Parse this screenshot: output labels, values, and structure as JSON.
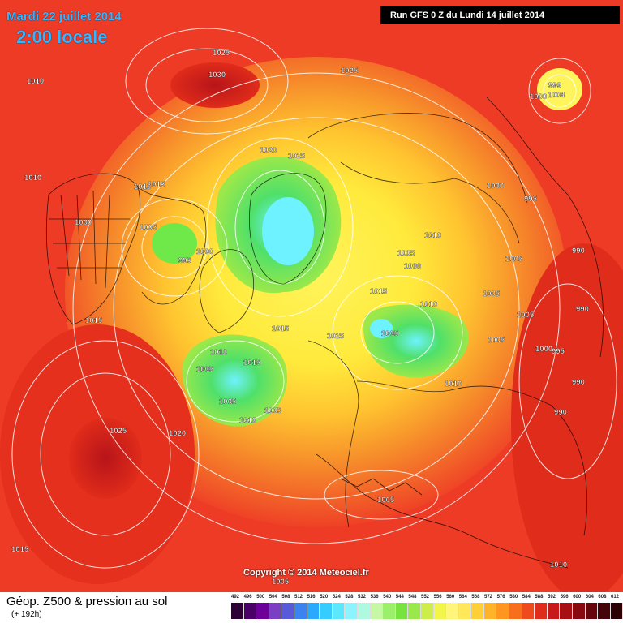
{
  "header": {
    "date": "Mardi 22 juillet 2014",
    "time": "2:00 locale",
    "run": "Run GFS 0 Z du Lundi 14 juillet 2014"
  },
  "map": {
    "isobar_labels": [
      {
        "text": "1010"
      },
      {
        "text": "1025"
      },
      {
        "text": "1030"
      },
      {
        "text": "1025"
      },
      {
        "text": "999"
      },
      {
        "text": "1000"
      },
      {
        "text": "1004"
      },
      {
        "text": "1010"
      },
      {
        "text": "1020"
      },
      {
        "text": "1025"
      },
      {
        "text": "1015"
      },
      {
        "text": "1010"
      },
      {
        "text": "1000"
      },
      {
        "text": "1005"
      },
      {
        "text": "995"
      },
      {
        "text": "1000"
      },
      {
        "text": "1010"
      },
      {
        "text": "1005"
      },
      {
        "text": "1000"
      },
      {
        "text": "1000"
      },
      {
        "text": "995"
      },
      {
        "text": "1005"
      },
      {
        "text": "990"
      },
      {
        "text": "1015"
      },
      {
        "text": "1005"
      },
      {
        "text": "990"
      },
      {
        "text": "1015"
      },
      {
        "text": "1015"
      },
      {
        "text": "1025"
      },
      {
        "text": "1010"
      },
      {
        "text": "1005"
      },
      {
        "text": "1005"
      },
      {
        "text": "1010"
      },
      {
        "text": "1015"
      },
      {
        "text": "1005"
      },
      {
        "text": "1000"
      },
      {
        "text": "995"
      },
      {
        "text": "990"
      },
      {
        "text": "1005"
      },
      {
        "text": "1010"
      },
      {
        "text": "1005"
      },
      {
        "text": "1010"
      },
      {
        "text": "990"
      },
      {
        "text": "1025"
      },
      {
        "text": "1020"
      },
      {
        "text": "1005"
      },
      {
        "text": "1015"
      },
      {
        "text": "1005"
      },
      {
        "text": "1010"
      },
      {
        "text": "1005"
      }
    ],
    "colors": {
      "ocean_red": "#ee3b26",
      "orange": "#f7922b",
      "yellow": "#fff240",
      "green": "#6fe84a",
      "cyan": "#6ef2ff"
    }
  },
  "footer": {
    "copyright": "Copyright © 2014 Meteociel.fr",
    "product": "Géop. Z500 & pression au sol",
    "lead": "(+ 192h)",
    "scale_labels": [
      "492",
      "496",
      "500",
      "504",
      "508",
      "512",
      "516",
      "520",
      "524",
      "528",
      "532",
      "536",
      "540",
      "544",
      "548",
      "552",
      "556",
      "560",
      "564",
      "568",
      "572",
      "576",
      "580",
      "584",
      "588",
      "592",
      "596",
      "600",
      "604",
      "608",
      "612"
    ],
    "scale_colors": [
      "#2d0036",
      "#4b0067",
      "#6d0099",
      "#7a3fc2",
      "#5a59d9",
      "#3b83ee",
      "#2aa9ff",
      "#35cdff",
      "#5be8ff",
      "#8df3ff",
      "#aef9e0",
      "#c6f7a5",
      "#9bef6a",
      "#77e33f",
      "#9be84a",
      "#cdee4a",
      "#f2f54a",
      "#fff57a",
      "#ffe85a",
      "#ffcf3a",
      "#ffb32a",
      "#ff961f",
      "#f76e1d",
      "#ee4a1e",
      "#e02c1a",
      "#c8181a",
      "#a80f14",
      "#880a10",
      "#66060c",
      "#44040a",
      "#2a0204"
    ]
  }
}
